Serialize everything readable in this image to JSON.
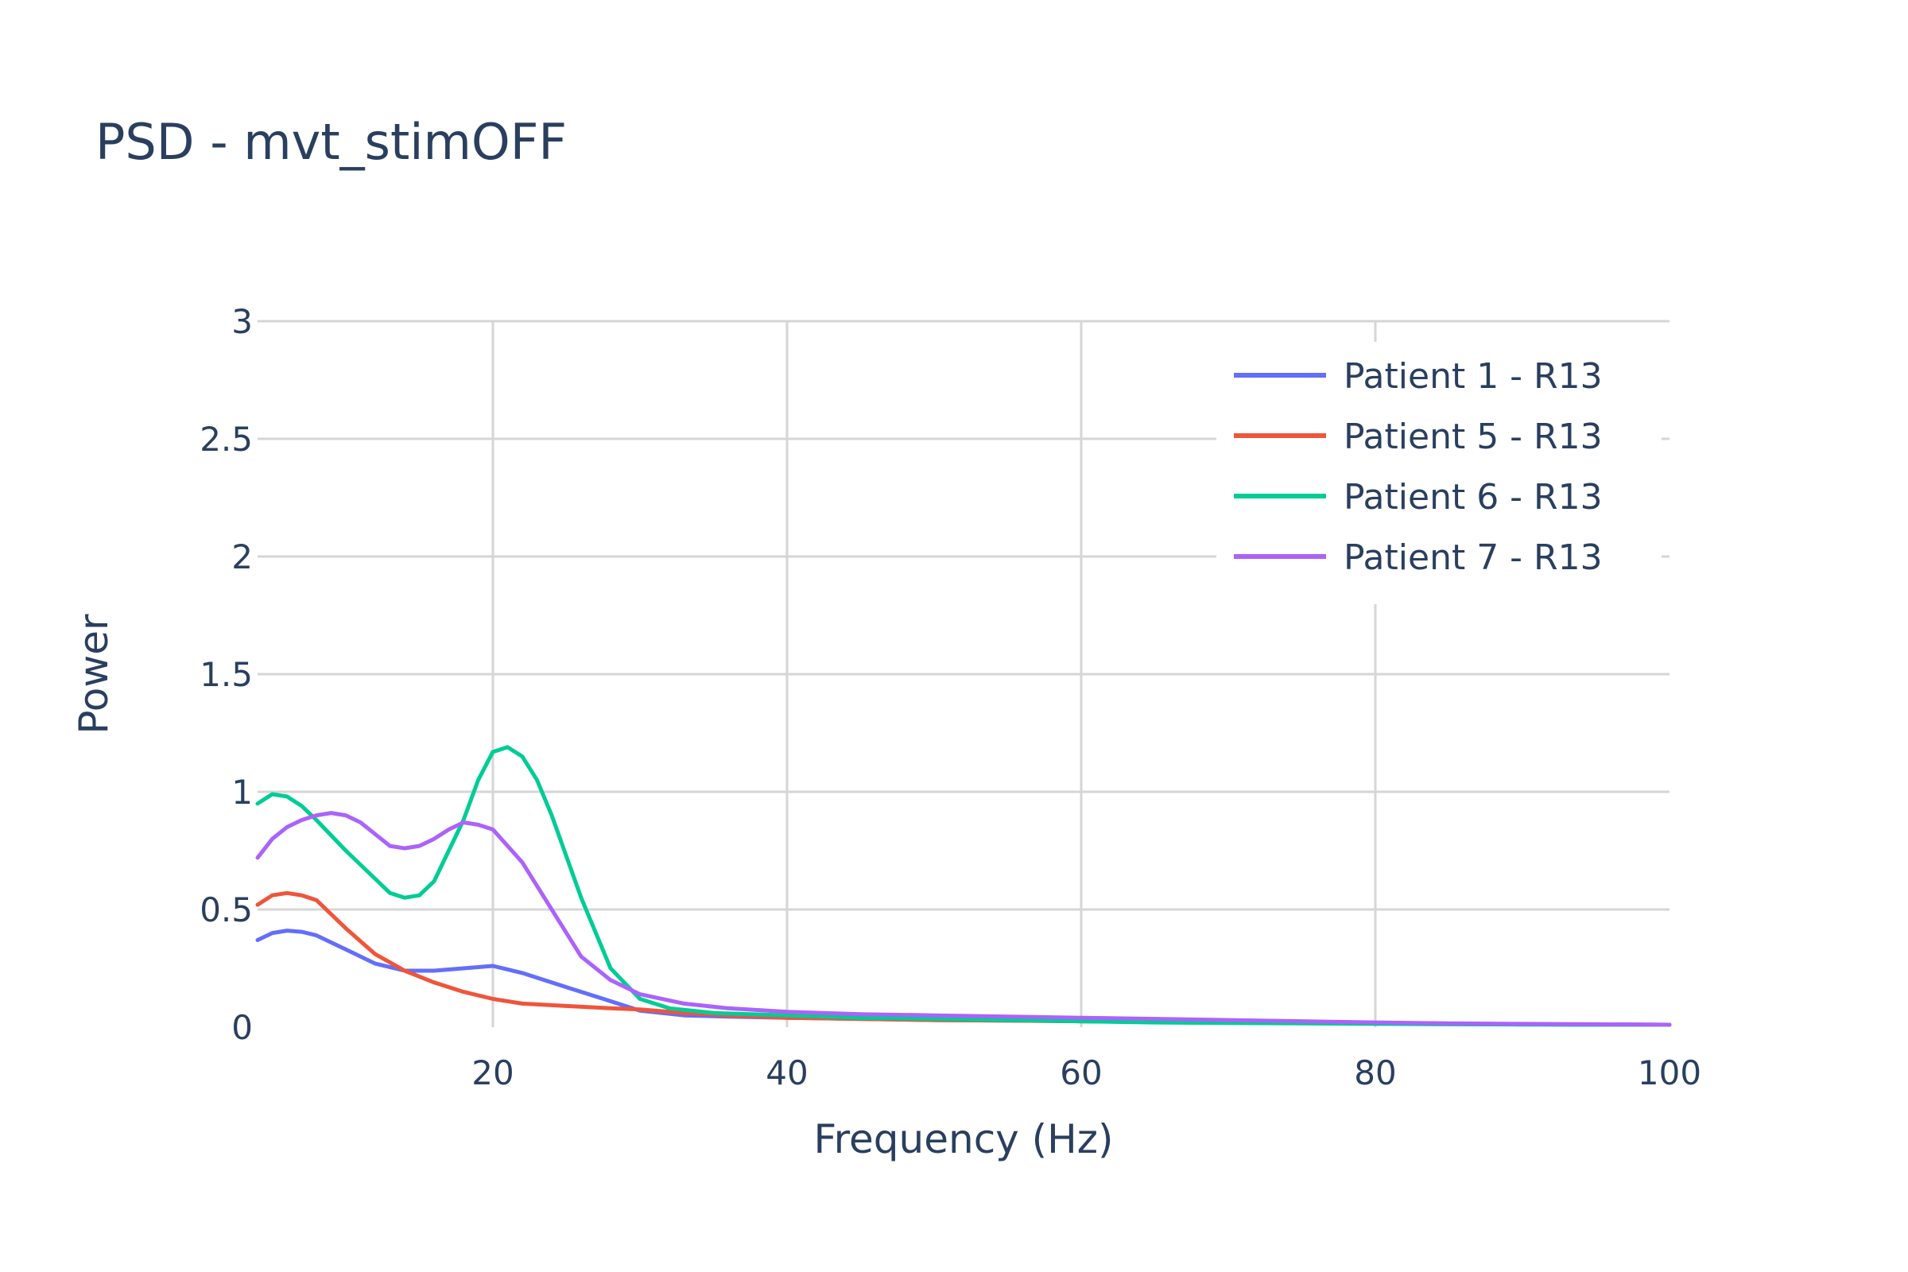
{
  "chart_data": {
    "type": "line",
    "title": "PSD - mvt_stimOFF",
    "xlabel": "Frequency (Hz)",
    "ylabel": "Power",
    "xlim": [
      4,
      100
    ],
    "ylim": [
      0,
      3
    ],
    "xticks": [
      20,
      40,
      60,
      80,
      100
    ],
    "yticks": [
      0,
      0.5,
      1,
      1.5,
      2,
      2.5,
      3
    ],
    "ytick_labels": [
      "0",
      "0.5",
      "1",
      "1.5",
      "2",
      "2.5",
      "3"
    ],
    "grid": true,
    "legend_position": "top-right",
    "series": [
      {
        "name": "Patient 1 - R13",
        "color": "#636efa",
        "x": [
          4,
          5,
          6,
          7,
          8,
          10,
          12,
          14,
          16,
          18,
          20,
          22,
          25,
          28,
          30,
          33,
          36,
          40,
          45,
          50,
          55,
          60,
          65,
          70,
          75,
          80,
          85,
          90,
          95,
          100
        ],
        "y": [
          0.37,
          0.4,
          0.41,
          0.405,
          0.39,
          0.33,
          0.27,
          0.24,
          0.24,
          0.25,
          0.26,
          0.23,
          0.17,
          0.11,
          0.07,
          0.05,
          0.045,
          0.04,
          0.035,
          0.03,
          0.028,
          0.025,
          0.022,
          0.02,
          0.018,
          0.016,
          0.014,
          0.012,
          0.011,
          0.01
        ]
      },
      {
        "name": "Patient 5 - R13",
        "color": "#ef553b",
        "x": [
          4,
          5,
          6,
          7,
          8,
          10,
          12,
          14,
          16,
          18,
          20,
          22,
          25,
          28,
          30,
          33,
          36,
          40,
          45,
          50,
          55,
          60,
          65,
          70,
          75,
          80,
          85,
          90,
          95,
          100
        ],
        "y": [
          0.52,
          0.56,
          0.57,
          0.56,
          0.54,
          0.42,
          0.31,
          0.24,
          0.19,
          0.15,
          0.12,
          0.1,
          0.09,
          0.08,
          0.075,
          0.06,
          0.05,
          0.04,
          0.035,
          0.03,
          0.028,
          0.025,
          0.022,
          0.02,
          0.018,
          0.016,
          0.014,
          0.012,
          0.011,
          0.01
        ]
      },
      {
        "name": "Patient 6 - R13",
        "color": "#00cc96",
        "x": [
          4,
          5,
          6,
          7,
          8,
          10,
          12,
          13,
          14,
          15,
          16,
          18,
          19,
          20,
          21,
          22,
          23,
          24,
          26,
          28,
          30,
          32,
          35,
          40,
          45,
          50,
          55,
          60,
          65,
          70,
          75,
          80,
          85,
          90,
          95,
          100
        ],
        "y": [
          0.95,
          0.99,
          0.98,
          0.94,
          0.88,
          0.75,
          0.63,
          0.57,
          0.55,
          0.56,
          0.62,
          0.88,
          1.05,
          1.17,
          1.19,
          1.15,
          1.05,
          0.9,
          0.55,
          0.25,
          0.12,
          0.08,
          0.06,
          0.05,
          0.04,
          0.035,
          0.03,
          0.025,
          0.02,
          0.018,
          0.016,
          0.014,
          0.012,
          0.011,
          0.01,
          0.01
        ]
      },
      {
        "name": "Patient 7 - R13",
        "color": "#ab63fa",
        "x": [
          4,
          5,
          6,
          7,
          8,
          9,
          10,
          11,
          12,
          13,
          14,
          15,
          16,
          17,
          18,
          19,
          20,
          22,
          24,
          26,
          28,
          30,
          33,
          36,
          40,
          45,
          50,
          55,
          60,
          65,
          70,
          75,
          80,
          85,
          90,
          95,
          100
        ],
        "y": [
          0.72,
          0.8,
          0.85,
          0.88,
          0.9,
          0.91,
          0.9,
          0.87,
          0.82,
          0.77,
          0.76,
          0.77,
          0.8,
          0.84,
          0.87,
          0.86,
          0.84,
          0.7,
          0.5,
          0.3,
          0.2,
          0.14,
          0.1,
          0.08,
          0.065,
          0.055,
          0.05,
          0.045,
          0.04,
          0.035,
          0.03,
          0.025,
          0.02,
          0.016,
          0.014,
          0.012,
          0.01
        ]
      }
    ]
  }
}
